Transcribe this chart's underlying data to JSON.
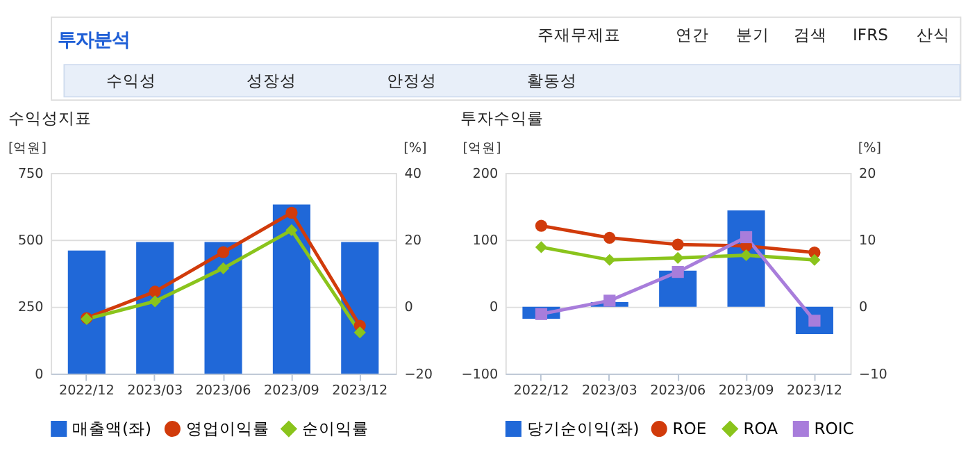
{
  "chart_data": [
    {
      "type": "other",
      "title": "투자분석",
      "annotations": [
        "주재무제표",
        "연간",
        "분기",
        "검색",
        "IFRS",
        "산식",
        "수익성",
        "성장성",
        "안정성",
        "활동성"
      ]
    },
    {
      "type": "bar",
      "title": "수익성지표",
      "ylabel": "[억원]",
      "y2label": "[%]",
      "categories": [
        "2022/12",
        "2023/03",
        "2023/06",
        "2023/09",
        "2023/12"
      ],
      "series": [
        {
          "name": "매출액(좌)",
          "type": "bar",
          "color": "#2068d8",
          "values": [
            460,
            492,
            492,
            632,
            492
          ]
        },
        {
          "name": "영업이익률",
          "type": "line",
          "axis": "y2",
          "marker": "circle",
          "color": "#d13b0b",
          "values": [
            -3.4,
            4.5,
            16.3,
            28.1,
            -5.7
          ]
        },
        {
          "name": "순이익률",
          "type": "line",
          "axis": "y2",
          "marker": "diamond",
          "color": "#8ac41c",
          "values": [
            -3.7,
            1.6,
            11.5,
            22.9,
            -7.7
          ]
        }
      ],
      "ylim": [
        0,
        750
      ],
      "yticks": [
        0,
        250,
        500,
        750
      ],
      "y2lim": [
        -20,
        40
      ],
      "y2ticks": [
        -20,
        0,
        20,
        40
      ],
      "grid": "y",
      "legend": "bottom",
      "line_style": "solid"
    },
    {
      "type": "bar",
      "title": "투자수익률",
      "ylabel": "[억원]",
      "y2label": "[%]",
      "categories": [
        "2022/12",
        "2023/03",
        "2023/06",
        "2023/09",
        "2023/12"
      ],
      "series": [
        {
          "name": "당기순이익(좌)",
          "type": "bar",
          "color": "#2068d8",
          "values": [
            -18,
            7,
            54,
            144,
            -41
          ]
        },
        {
          "name": "ROE",
          "type": "line",
          "axis": "y2",
          "marker": "circle",
          "color": "#d13b0b",
          "values": [
            12.1,
            10.3,
            9.3,
            9.1,
            8.1
          ]
        },
        {
          "name": "ROA",
          "type": "line",
          "axis": "y2",
          "marker": "diamond",
          "color": "#8ac41c",
          "values": [
            8.9,
            7.0,
            7.3,
            7.7,
            7.0
          ]
        },
        {
          "name": "ROIC",
          "type": "line",
          "axis": "y2",
          "marker": "square",
          "color": "#a87ddb",
          "values": [
            -1.1,
            0.9,
            5.2,
            10.4,
            -2.1
          ]
        }
      ],
      "ylim": [
        -100,
        200
      ],
      "yticks": [
        -100,
        0,
        100,
        200
      ],
      "y2lim": [
        -10,
        20
      ],
      "y2ticks": [
        -10,
        0,
        10,
        20
      ],
      "grid": "y",
      "legend": "bottom",
      "line_style": "solid"
    }
  ]
}
